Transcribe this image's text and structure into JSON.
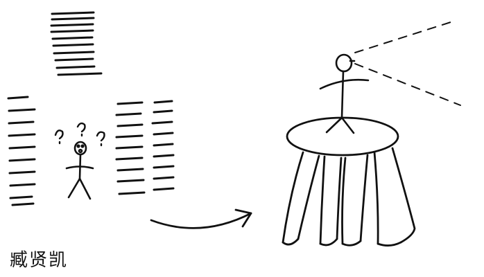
{
  "drawing": {
    "caption_signature": "臧贤凯",
    "ink_color": "#111111",
    "background_color": "#ffffff",
    "confused_marks": "? ? ?",
    "elements": [
      "stacks-of-lines",
      "confused-stick-figure",
      "curved-arrow",
      "stick-figure-on-table",
      "dashed-view-lines"
    ]
  }
}
